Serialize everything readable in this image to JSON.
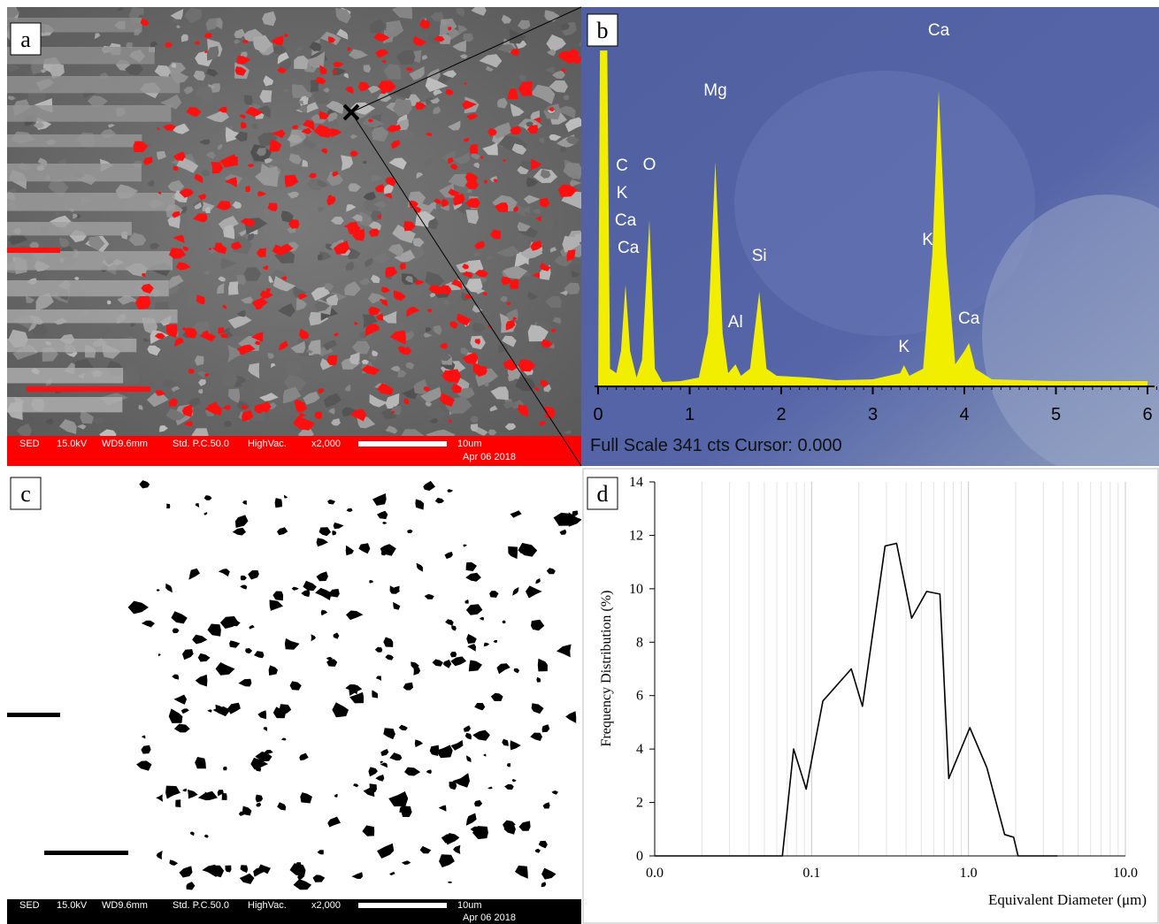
{
  "panels": {
    "a": {
      "label": "a",
      "info": [
        "SED",
        "15.0kV",
        "WD9.6mm",
        "Std. P.C.50.0",
        "HighVac.",
        "x2,000",
        "10um",
        "Apr 06 2018"
      ]
    },
    "b": {
      "label": "b"
    },
    "c": {
      "label": "c",
      "info": [
        "SED",
        "15.0kV",
        "WD9.6mm",
        "Std. P.C.50.0",
        "HighVac.",
        "x2,000",
        "10um",
        "Apr 06 2018"
      ]
    },
    "d": {
      "label": "d"
    }
  },
  "chart_data": [
    {
      "type": "area",
      "color": "#f2ee00",
      "x": [
        0,
        0.02,
        0.1,
        0.13,
        0.2,
        0.25,
        0.3,
        0.35,
        0.42,
        0.48,
        0.56,
        0.62,
        0.7,
        0.9,
        1.1,
        1.2,
        1.28,
        1.36,
        1.42,
        1.5,
        1.56,
        1.66,
        1.76,
        1.84,
        1.95,
        2.3,
        2.6,
        3.0,
        3.3,
        3.34,
        3.4,
        3.55,
        3.65,
        3.72,
        3.8,
        3.9,
        4.0,
        4.05,
        4.12,
        4.3,
        5.0,
        6.0
      ],
      "values": [
        0,
        380,
        380,
        20,
        15,
        40,
        115,
        40,
        10,
        30,
        188,
        20,
        5,
        6,
        10,
        60,
        254,
        60,
        15,
        25,
        12,
        20,
        107,
        20,
        12,
        10,
        7,
        8,
        15,
        24,
        12,
        20,
        150,
        335,
        150,
        25,
        40,
        49,
        20,
        8,
        6,
        6
      ],
      "xlim": [
        -0.08,
        6.08
      ],
      "xticks": [
        0,
        1,
        2,
        3,
        4,
        5,
        6
      ],
      "ylim": [
        0,
        341
      ],
      "annotations": [
        {
          "text": "C",
          "x": 0.3
        },
        {
          "text": "K",
          "x": 0.3
        },
        {
          "text": "Ca",
          "x": 0.3
        },
        {
          "text": "Ca",
          "x": 0.33
        },
        {
          "text": "O",
          "x": 0.56
        },
        {
          "text": "Mg",
          "x": 1.28
        },
        {
          "text": "Al",
          "x": 1.5
        },
        {
          "text": "Si",
          "x": 1.76
        },
        {
          "text": "K",
          "x": 3.34
        },
        {
          "text": "Ca",
          "x": 3.72
        },
        {
          "text": "K",
          "x": 3.6
        },
        {
          "text": "Ca",
          "x": 4.05
        }
      ],
      "footer": "Full Scale 341 cts Cursor: 0.000"
    },
    {
      "type": "line",
      "color": "#000000",
      "log_x": true,
      "x": [
        0.01,
        0.0617,
        0.0651,
        0.0708,
        0.0768,
        0.0924,
        0.118,
        0.179,
        0.211,
        0.294,
        0.348,
        0.434,
        0.541,
        0.658,
        0.749,
        1.02,
        1.31,
        1.7,
        1.94,
        2.07,
        3.69
      ],
      "values": [
        0,
        0,
        0,
        2,
        4,
        2.5,
        5.8,
        7,
        5.6,
        11.6,
        11.7,
        8.9,
        9.9,
        9.8,
        2.9,
        4.8,
        3.3,
        0.8,
        0.7,
        0,
        0
      ],
      "xlim": [
        0.01,
        10
      ],
      "xticks": [
        {
          "value": 0.01,
          "label": "0.0"
        },
        {
          "value": 0.1,
          "label": "0.1"
        },
        {
          "value": 1,
          "label": "1.0"
        },
        {
          "value": 10,
          "label": "10.0"
        }
      ],
      "ylim": [
        0,
        14
      ],
      "yticks": [
        0,
        2,
        4,
        6,
        8,
        10,
        12,
        14
      ],
      "x_label": "Equivalent Diameter (μm)",
      "y_label": "Frequency Distribution (%)"
    }
  ]
}
